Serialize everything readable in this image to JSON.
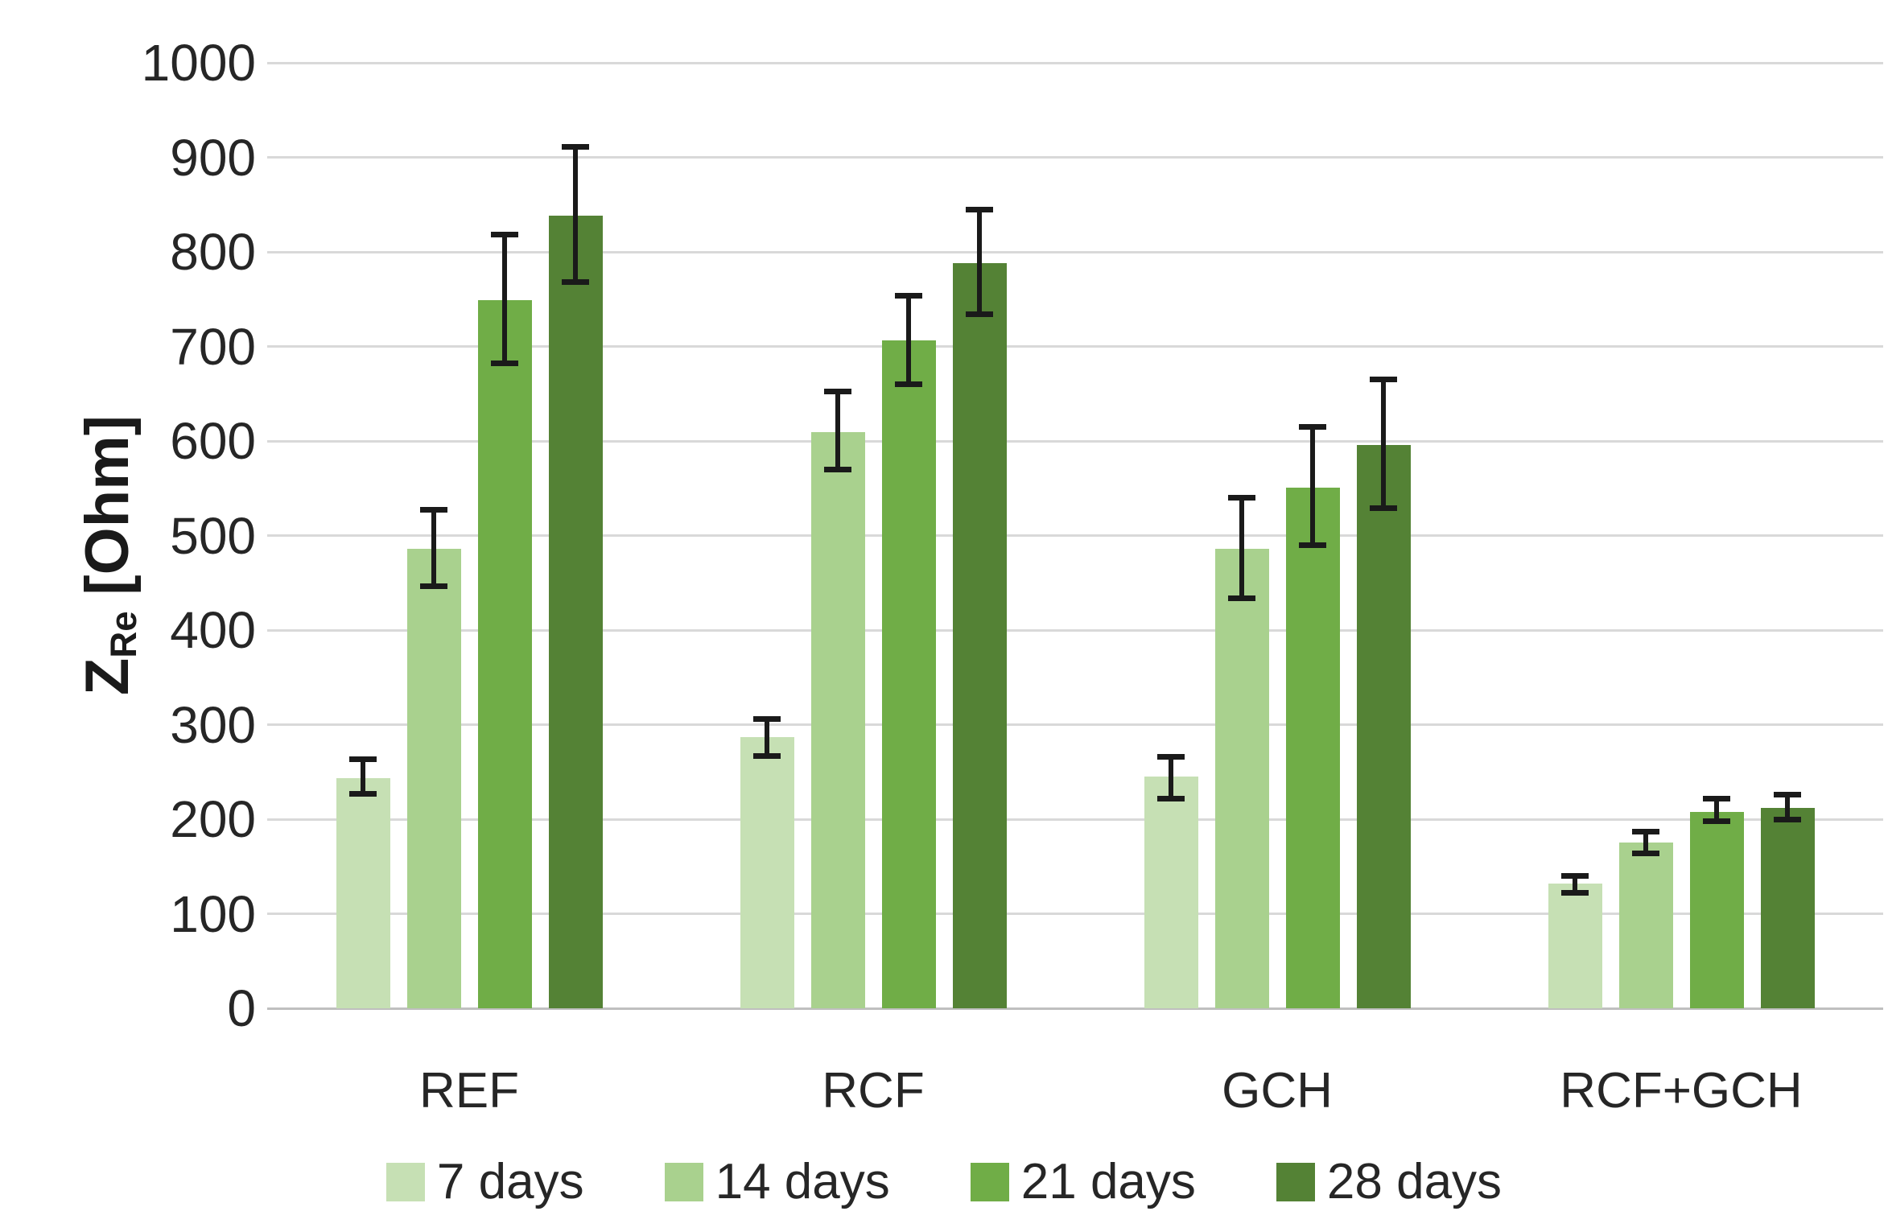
{
  "chart_data": {
    "type": "bar",
    "title": "",
    "ylabel": "Z_Re [Ohm]",
    "ylabel_parts": {
      "symbol": "Z",
      "subscript": "Re",
      "unit": "[Ohm]"
    },
    "ylim": [
      0,
      1000
    ],
    "yticks": [
      0,
      100,
      200,
      300,
      400,
      500,
      600,
      700,
      800,
      900,
      1000
    ],
    "grid": "horizontal",
    "grid_color": "#d9d9d9",
    "axis_line_color": "#bfbfbf",
    "error_bar_color": "#1a1a1a",
    "legend_position": "bottom",
    "categories": [
      "REF",
      "RCF",
      "GCH",
      "RCF+GCH"
    ],
    "series": [
      {
        "name": "7 days",
        "color": "#C6E0B4",
        "values": [
          243,
          287,
          245,
          132
        ],
        "error_low": [
          227,
          267,
          222,
          122
        ],
        "error_high": [
          263,
          306,
          266,
          140
        ]
      },
      {
        "name": "14 days",
        "color": "#A9D18E",
        "values": [
          486,
          609,
          486,
          175
        ],
        "error_low": [
          446,
          570,
          434,
          164
        ],
        "error_high": [
          527,
          652,
          540,
          187
        ]
      },
      {
        "name": "21 days",
        "color": "#70AD47",
        "values": [
          749,
          706,
          551,
          208
        ],
        "error_low": [
          682,
          660,
          490,
          198
        ],
        "error_high": [
          818,
          754,
          615,
          222
        ]
      },
      {
        "name": "28 days",
        "color": "#548235",
        "values": [
          838,
          788,
          596,
          212
        ],
        "error_low": [
          768,
          734,
          529,
          200
        ],
        "error_high": [
          911,
          845,
          665,
          226
        ]
      }
    ]
  }
}
